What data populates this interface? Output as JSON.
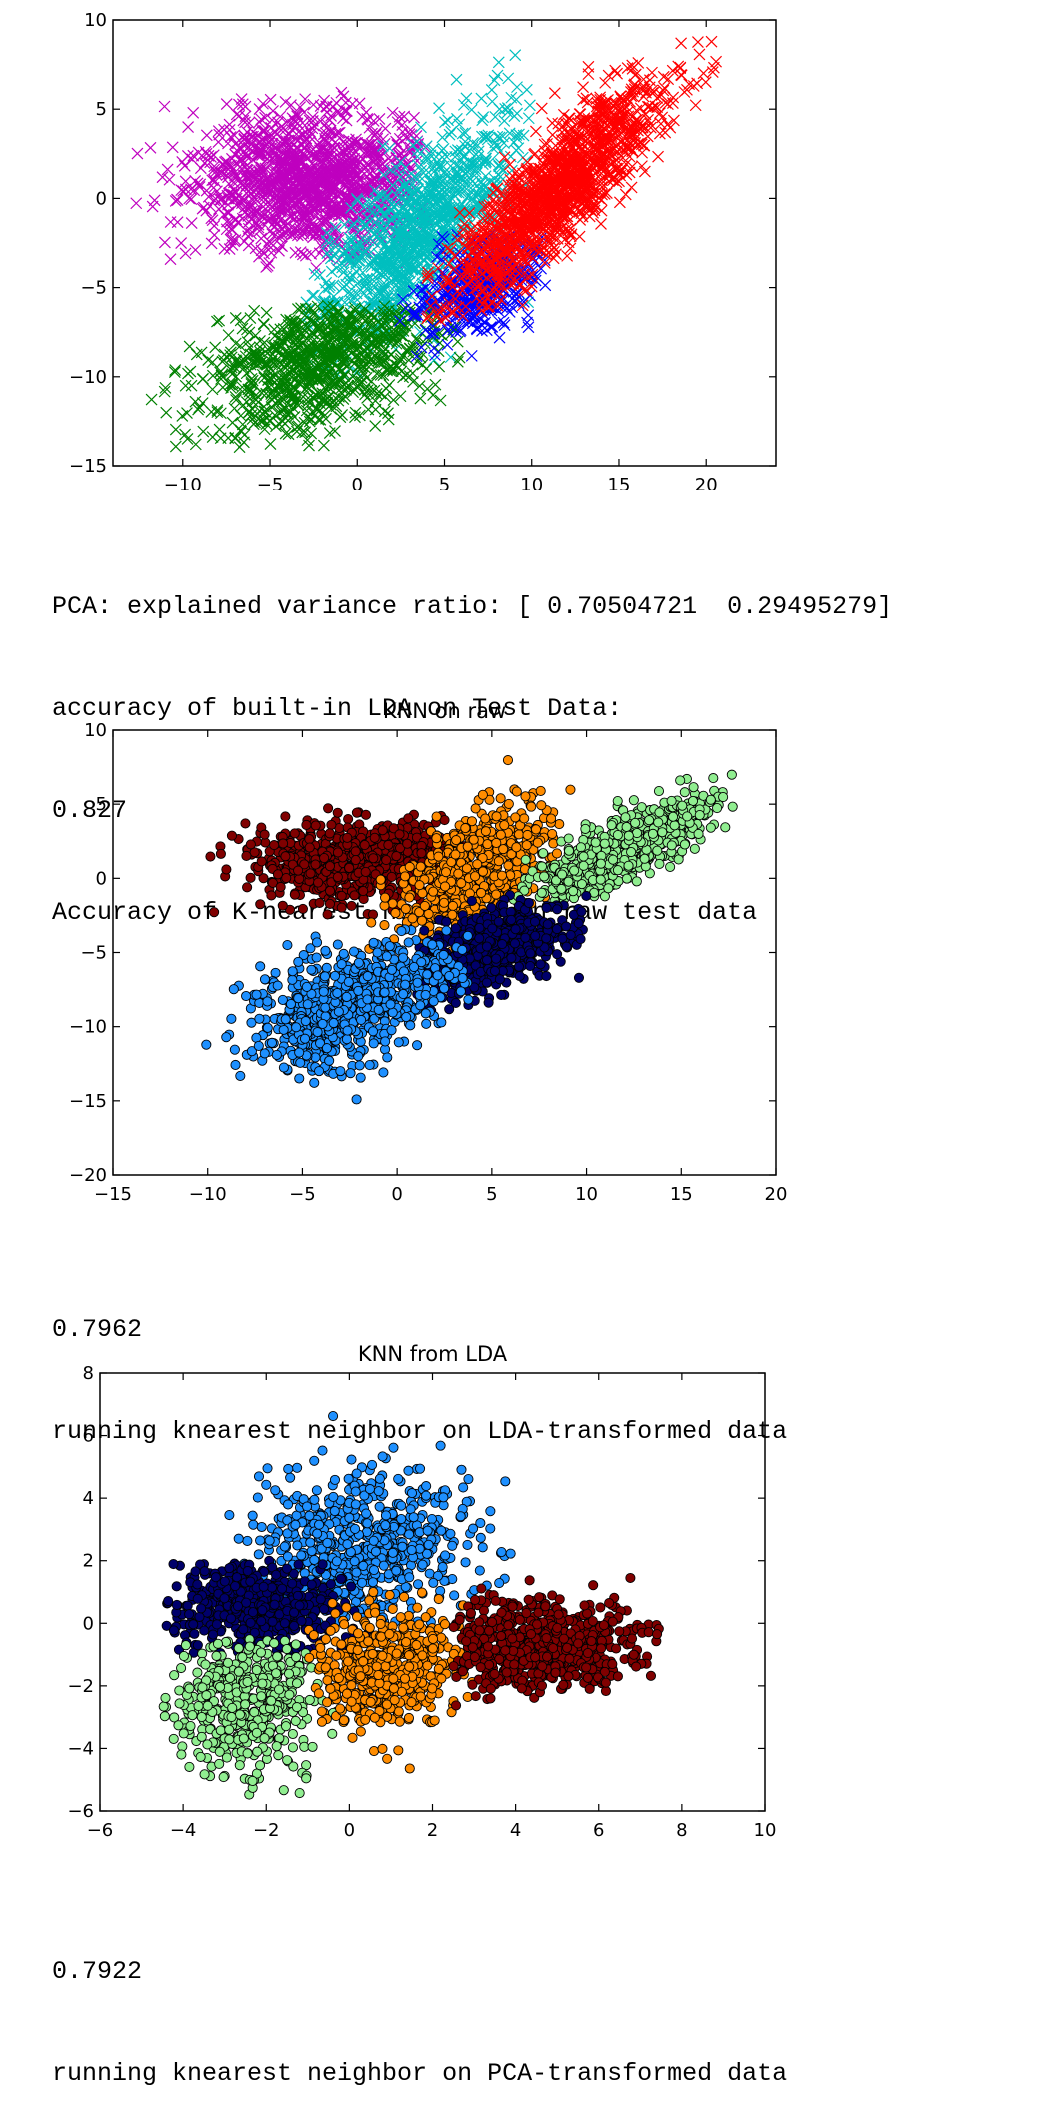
{
  "chart_data": [
    {
      "type": "scatter",
      "title": "",
      "xlabel": "",
      "ylabel": "",
      "xlim": [
        -14,
        24
      ],
      "ylim": [
        -15,
        10
      ],
      "xticks": [
        "−10",
        "−5",
        "0",
        "5",
        "10",
        "15",
        "20"
      ],
      "yticks": [
        "10",
        "5",
        "0",
        "−5",
        "−10",
        "−15"
      ],
      "marker": "x",
      "grid": false,
      "legend": "none",
      "series": [
        {
          "color": "#bf00bf",
          "center": [
            -2.5,
            1.0
          ],
          "spread": [
            3.5,
            2.0
          ],
          "corr": 0.05,
          "range": {
            "x": [
              -13,
              4
            ],
            "y": [
              -4,
              6
            ]
          }
        },
        {
          "color": "#00bfbf",
          "center": [
            3.5,
            -2.0
          ],
          "spread": [
            3.0,
            3.2
          ],
          "corr": 0.7,
          "range": {
            "x": [
              -3,
              10
            ],
            "y": [
              -10,
              9.5
            ]
          }
        },
        {
          "color": "#008000",
          "center": [
            -2.0,
            -9.0
          ],
          "spread": [
            3.5,
            2.2
          ],
          "corr": 0.5,
          "range": {
            "x": [
              -12,
              6
            ],
            "y": [
              -14,
              -6
            ]
          }
        },
        {
          "color": "#0000ff",
          "center": [
            7.0,
            -5.0
          ],
          "spread": [
            1.8,
            1.5
          ],
          "corr": 0.5,
          "range": {
            "x": [
              2,
              11
            ],
            "y": [
              -9,
              -2
            ]
          }
        },
        {
          "color": "#ff0000",
          "center": [
            11.5,
            0.5
          ],
          "spread": [
            3.0,
            3.0
          ],
          "corr": 0.85,
          "range": {
            "x": [
              4,
              21
            ],
            "y": [
              -7,
              9
            ]
          }
        }
      ]
    },
    {
      "type": "scatter",
      "title": "KNN on raw",
      "xlabel": "",
      "ylabel": "",
      "xlim": [
        -15,
        20
      ],
      "ylim": [
        -20,
        10
      ],
      "xticks": [
        "−15",
        "−10",
        "−5",
        "0",
        "5",
        "10",
        "15",
        "20"
      ],
      "yticks": [
        "10",
        "5",
        "0",
        "−5",
        "−10",
        "−15",
        "−20"
      ],
      "marker": "o",
      "grid": false,
      "legend": "none",
      "series": [
        {
          "color": "#800000",
          "center": [
            -2.0,
            1.2
          ],
          "spread": [
            3.0,
            1.4
          ],
          "corr": 0.1,
          "range": {
            "x": [
              -11,
              4
            ],
            "y": [
              -3,
              5
            ]
          }
        },
        {
          "color": "#ff8c00",
          "center": [
            4.0,
            0.5
          ],
          "spread": [
            2.0,
            2.2
          ],
          "corr": 0.5,
          "range": {
            "x": [
              -2,
              10
            ],
            "y": [
              -6,
              8
            ]
          }
        },
        {
          "color": "#90ee90",
          "center": [
            12.0,
            2.0
          ],
          "spread": [
            2.5,
            1.8
          ],
          "corr": 0.8,
          "range": {
            "x": [
              6,
              18
            ],
            "y": [
              -2,
              7
            ]
          }
        },
        {
          "color": "#00006b",
          "center": [
            5.0,
            -4.8
          ],
          "spread": [
            2.0,
            1.5
          ],
          "corr": 0.5,
          "range": {
            "x": [
              1,
              10
            ],
            "y": [
              -9,
              -1
            ]
          }
        },
        {
          "color": "#1e90ff",
          "center": [
            -2.5,
            -8.5
          ],
          "spread": [
            2.6,
            2.2
          ],
          "corr": 0.5,
          "range": {
            "x": [
              -11,
              4
            ],
            "y": [
              -15,
              -3
            ]
          }
        }
      ]
    },
    {
      "type": "scatter",
      "title": "KNN from LDA",
      "xlabel": "",
      "ylabel": "",
      "xlim": [
        -6,
        10
      ],
      "ylim": [
        -6,
        8
      ],
      "xticks": [
        "−6",
        "−4",
        "−2",
        "0",
        "2",
        "4",
        "6",
        "8",
        "10"
      ],
      "yticks": [
        "8",
        "6",
        "4",
        "2",
        "0",
        "−2",
        "−4",
        "−6"
      ],
      "marker": "o",
      "grid": false,
      "legend": "none",
      "series": [
        {
          "color": "#1e90ff",
          "center": [
            0.2,
            2.4
          ],
          "spread": [
            1.3,
            1.2
          ],
          "corr": 0.0,
          "range": {
            "x": [
              -4,
              4
            ],
            "y": [
              0,
              6.8
            ]
          }
        },
        {
          "color": "#00006b",
          "center": [
            -2.2,
            0.5
          ],
          "spread": [
            1.0,
            0.8
          ],
          "corr": 0.0,
          "range": {
            "x": [
              -4.4,
              0.5
            ],
            "y": [
              -1,
              2
            ]
          }
        },
        {
          "color": "#90ee90",
          "center": [
            -2.5,
            -2.5
          ],
          "spread": [
            0.9,
            1.1
          ],
          "corr": 0.0,
          "range": {
            "x": [
              -4.5,
              0
            ],
            "y": [
              -5.5,
              -0.5
            ]
          }
        },
        {
          "color": "#ff8c00",
          "center": [
            1.0,
            -1.4
          ],
          "spread": [
            0.9,
            1.0
          ],
          "corr": 0.1,
          "range": {
            "x": [
              -1,
              3
            ],
            "y": [
              -4.8,
              1
            ]
          }
        },
        {
          "color": "#800000",
          "center": [
            4.5,
            -0.7
          ],
          "spread": [
            1.2,
            0.7
          ],
          "corr": 0.0,
          "range": {
            "x": [
              2.5,
              8
            ],
            "y": [
              -2.8,
              1.5
            ]
          }
        }
      ]
    }
  ],
  "output": {
    "pca_variance": "PCA: explained variance ratio: [ 0.70504721  0.29495279]",
    "lda_accuracy_label": "accuracy of built-in LDA on Test Data:",
    "lda_accuracy_value": "0.827",
    "knn_raw_label": "Accuracy of K-nearest neighbor on raw test data",
    "knn_raw_value": "0.7962",
    "knn_lda_label": "running knearest neighbor on LDA-transformed data",
    "knn_lda_value": "0.7922",
    "knn_pca_label": "running knearest neighbor on PCA-transformed data"
  }
}
